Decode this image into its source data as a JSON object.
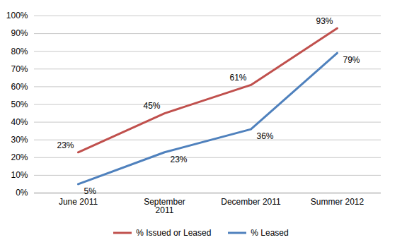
{
  "chart_data": {
    "type": "line",
    "categories": [
      "June 2011",
      "September\n2011",
      "December 2011",
      "Summer 2012"
    ],
    "series": [
      {
        "name": "% Issued or Leased",
        "color": "#C0504D",
        "values": [
          23,
          45,
          61,
          93
        ],
        "value_labels": [
          "23%",
          "45%",
          "61%",
          "93%"
        ]
      },
      {
        "name": "% Leased",
        "color": "#4F81BD",
        "values": [
          5,
          23,
          36,
          79
        ],
        "value_labels": [
          "5%",
          "23%",
          "36%",
          "79%"
        ]
      }
    ],
    "ylim": [
      0,
      100
    ],
    "yticks": [
      {
        "value": 0,
        "label": "0%"
      },
      {
        "value": 10,
        "label": "10%"
      },
      {
        "value": 20,
        "label": "20%"
      },
      {
        "value": 30,
        "label": "30%"
      },
      {
        "value": 40,
        "label": "40%"
      },
      {
        "value": 50,
        "label": "50%"
      },
      {
        "value": 60,
        "label": "60%"
      },
      {
        "value": 70,
        "label": "70%"
      },
      {
        "value": 80,
        "label": "80%"
      },
      {
        "value": 90,
        "label": "90%"
      },
      {
        "value": 100,
        "label": "100%"
      }
    ],
    "grid": true,
    "legend": "bottom",
    "data_labels": true
  }
}
